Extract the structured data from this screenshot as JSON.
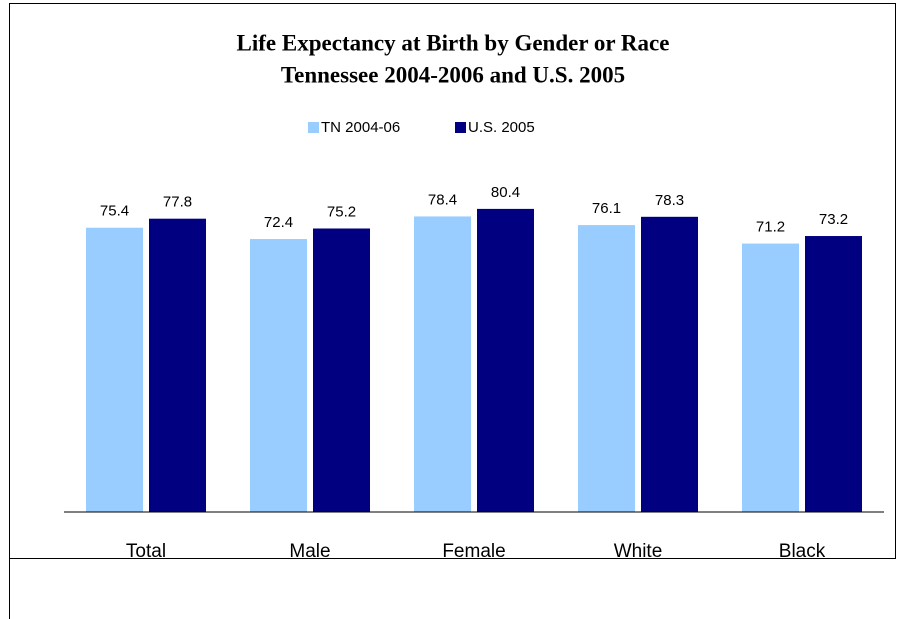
{
  "chart_data": {
    "type": "bar",
    "title": "Life Expectancy at Birth by Gender or Race",
    "subtitle": "Tennessee 2004-2006 and U.S. 2005",
    "categories": [
      "Total",
      "Male",
      "Female",
      "White",
      "Black"
    ],
    "series": [
      {
        "name": "TN 2004-06",
        "color": "#99ccff",
        "values": [
          75.4,
          72.4,
          78.4,
          76.1,
          71.2
        ]
      },
      {
        "name": "U.S. 2005",
        "color": "#000080",
        "values": [
          77.8,
          75.2,
          80.4,
          78.3,
          73.2
        ]
      }
    ],
    "ylim": [
      0,
      100
    ],
    "legend": "top"
  }
}
